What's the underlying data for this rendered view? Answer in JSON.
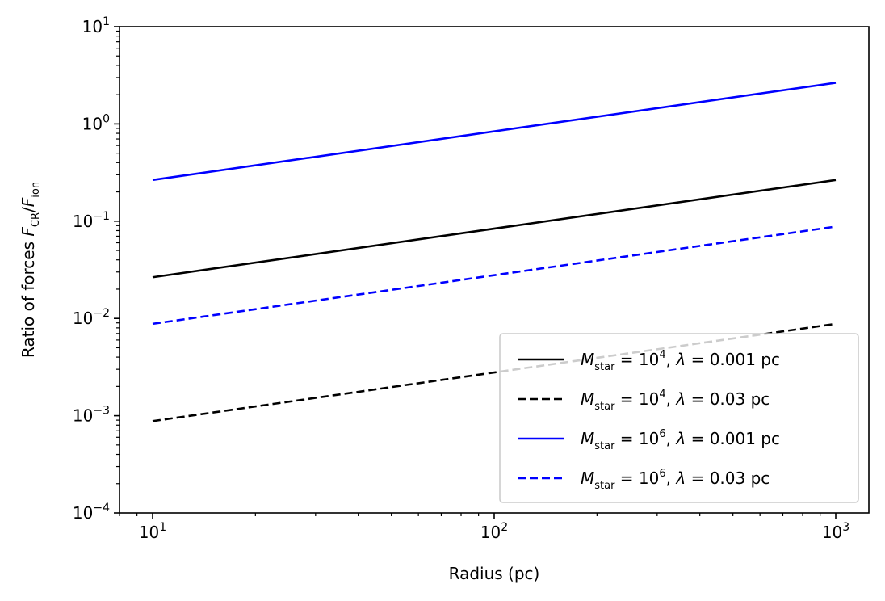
{
  "chart_data": {
    "type": "line",
    "xlabel": "Radius (pc)",
    "ylabel": "Ratio of forces F_CR/F_ion",
    "xscale": "log",
    "yscale": "log",
    "xlim": [
      8,
      1250
    ],
    "ylim": [
      0.0001,
      10
    ],
    "x_ticks": [
      {
        "value": 10,
        "base": "10",
        "exp": "1"
      },
      {
        "value": 100,
        "base": "10",
        "exp": "2"
      },
      {
        "value": 1000,
        "base": "10",
        "exp": "3"
      }
    ],
    "y_ticks": [
      {
        "value": 0.0001,
        "base": "10",
        "exp": "−4"
      },
      {
        "value": 0.001,
        "base": "10",
        "exp": "−3"
      },
      {
        "value": 0.01,
        "base": "10",
        "exp": "−2"
      },
      {
        "value": 0.1,
        "base": "10",
        "exp": "−1"
      },
      {
        "value": 1,
        "base": "10",
        "exp": "0"
      },
      {
        "value": 10,
        "base": "10",
        "exp": "1"
      }
    ],
    "legend_position": "lower-right",
    "series": [
      {
        "name": "M_star = 10^4, λ = 0.001 pc",
        "name_parts": {
          "sym": "M",
          "sub": "star",
          "exp": "4",
          "lam": "0.001 pc"
        },
        "color": "#000000",
        "style": "solid",
        "x": [
          10,
          1000
        ],
        "y": [
          0.0265,
          0.265
        ]
      },
      {
        "name": "M_star = 10^4, λ = 0.03 pc",
        "name_parts": {
          "sym": "M",
          "sub": "star",
          "exp": "4",
          "lam": "0.03 pc"
        },
        "color": "#000000",
        "style": "dashed",
        "x": [
          10,
          1000
        ],
        "y": [
          0.00088,
          0.0088
        ]
      },
      {
        "name": "M_star = 10^6, λ = 0.001 pc",
        "name_parts": {
          "sym": "M",
          "sub": "star",
          "exp": "6",
          "lam": "0.001 pc"
        },
        "color": "#0000ff",
        "style": "solid",
        "x": [
          10,
          1000
        ],
        "y": [
          0.265,
          2.65
        ]
      },
      {
        "name": "M_star = 10^6, λ = 0.03 pc",
        "name_parts": {
          "sym": "M",
          "sub": "star",
          "exp": "6",
          "lam": "0.03 pc"
        },
        "color": "#0000ff",
        "style": "dashed",
        "x": [
          10,
          1000
        ],
        "y": [
          0.0088,
          0.088
        ]
      }
    ]
  }
}
